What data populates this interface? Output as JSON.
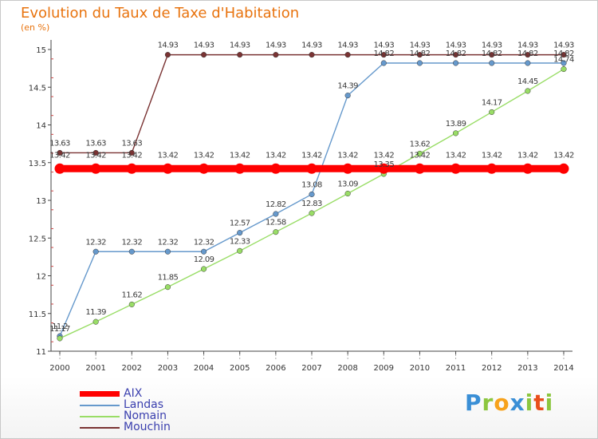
{
  "header": {
    "title": "Evolution du Taux de Taxe d'Habitation",
    "subtitle": "(en %)"
  },
  "logo": {
    "text": "Proxiti",
    "letters": [
      {
        "ch": "P",
        "color": "#3a8fd6"
      },
      {
        "ch": "r",
        "color": "#8cc63f"
      },
      {
        "ch": "o",
        "color": "#f7a21b"
      },
      {
        "ch": "x",
        "color": "#3a8fd6"
      },
      {
        "ch": "i",
        "color": "#8cc63f"
      },
      {
        "ch": "t",
        "color": "#e94e1b"
      },
      {
        "ch": "i",
        "color": "#8cc63f"
      }
    ]
  },
  "chart_data": {
    "type": "line",
    "title": "Evolution du Taux de Taxe d'Habitation",
    "ylabel": "(en %)",
    "xlabel": "",
    "ylim": [
      11,
      15
    ],
    "yticks": [
      11,
      11.5,
      12,
      12.5,
      13,
      13.5,
      14,
      14.5,
      15
    ],
    "x": [
      2000,
      2001,
      2002,
      2003,
      2004,
      2005,
      2006,
      2007,
      2008,
      2009,
      2010,
      2011,
      2012,
      2013,
      2014
    ],
    "grid": false,
    "legend_position": "bottom-left",
    "series": [
      {
        "name": "AIX",
        "color": "#ff0000",
        "thick": true,
        "values": [
          13.42,
          13.42,
          13.42,
          13.42,
          13.42,
          13.42,
          13.42,
          13.42,
          13.42,
          13.42,
          13.42,
          13.42,
          13.42,
          13.42,
          13.42
        ],
        "labels": [
          "13.42",
          "13.42",
          "13.42",
          "13.42",
          "13.42",
          "13.42",
          "13.42",
          "13.42",
          "13.42",
          "13.42",
          "13.42",
          "13.42",
          "13.42",
          "13.42",
          "13.42"
        ]
      },
      {
        "name": "Landas",
        "color": "#6699cc",
        "values": [
          11.2,
          12.32,
          12.32,
          12.32,
          12.32,
          12.57,
          12.82,
          13.08,
          14.39,
          14.82,
          14.82,
          14.82,
          14.82,
          14.82,
          14.82
        ],
        "labels": [
          "11.2",
          "12.32",
          "12.32",
          "12.32",
          "12.32",
          "12.57",
          "12.82",
          "13.08",
          "14.39",
          "14.82",
          "14.82",
          "14.82",
          "14.82",
          "14.82",
          "14.82"
        ]
      },
      {
        "name": "Nomain",
        "color": "#99dd66",
        "values": [
          11.17,
          11.39,
          11.62,
          11.85,
          12.09,
          12.33,
          12.58,
          12.83,
          13.09,
          13.35,
          13.62,
          13.89,
          14.17,
          14.45,
          14.74
        ],
        "labels": [
          "11.17",
          "11.39",
          "11.62",
          "11.85",
          "12.09",
          "12.33",
          "12.58",
          "12.83",
          "13.09",
          "13.35",
          "13.62",
          "13.89",
          "14.17",
          "14.45",
          "14.74"
        ]
      },
      {
        "name": "Mouchin",
        "color": "#7a3333",
        "values": [
          13.63,
          13.63,
          13.63,
          14.93,
          14.93,
          14.93,
          14.93,
          14.93,
          14.93,
          14.93,
          14.93,
          14.93,
          14.93,
          14.93,
          14.93
        ],
        "labels": [
          "13.63",
          "13.63",
          "13.63",
          "14.93",
          "14.93",
          "14.93",
          "14.93",
          "14.93",
          "14.93",
          "14.93",
          "14.93",
          "14.93",
          "14.93",
          "14.93",
          "14.93"
        ]
      }
    ]
  }
}
